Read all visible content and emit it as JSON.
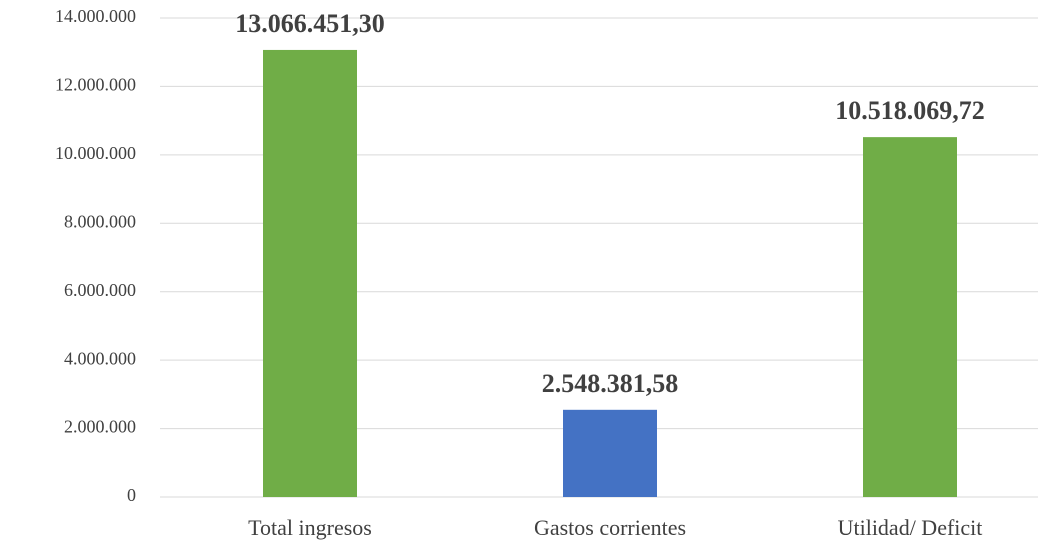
{
  "chart_data": {
    "type": "bar",
    "categories": [
      "Total ingresos",
      "Gastos corrientes",
      "Utilidad/ Deficit"
    ],
    "values": [
      13066451.3,
      2548381.58,
      10518069.72
    ],
    "value_labels": [
      "13.066.451,30",
      "2.548.381,58",
      "10.518.069,72"
    ],
    "colors": [
      "#70ad47",
      "#4472c4",
      "#70ad47"
    ],
    "ylim": [
      0,
      14000000
    ],
    "yticks": [
      0,
      {
        "value": 2000000,
        "label": "2.000.000"
      },
      {
        "value": 4000000,
        "label": "4.000.000"
      },
      {
        "value": 6000000,
        "label": "6.000.000"
      },
      {
        "value": 8000000,
        "label": "8.000.000"
      },
      {
        "value": 10000000,
        "label": "10.000.000"
      },
      {
        "value": 12000000,
        "label": "12.000.000"
      },
      {
        "value": 14000000,
        "label": "14.000.000"
      }
    ],
    "grid": true
  }
}
